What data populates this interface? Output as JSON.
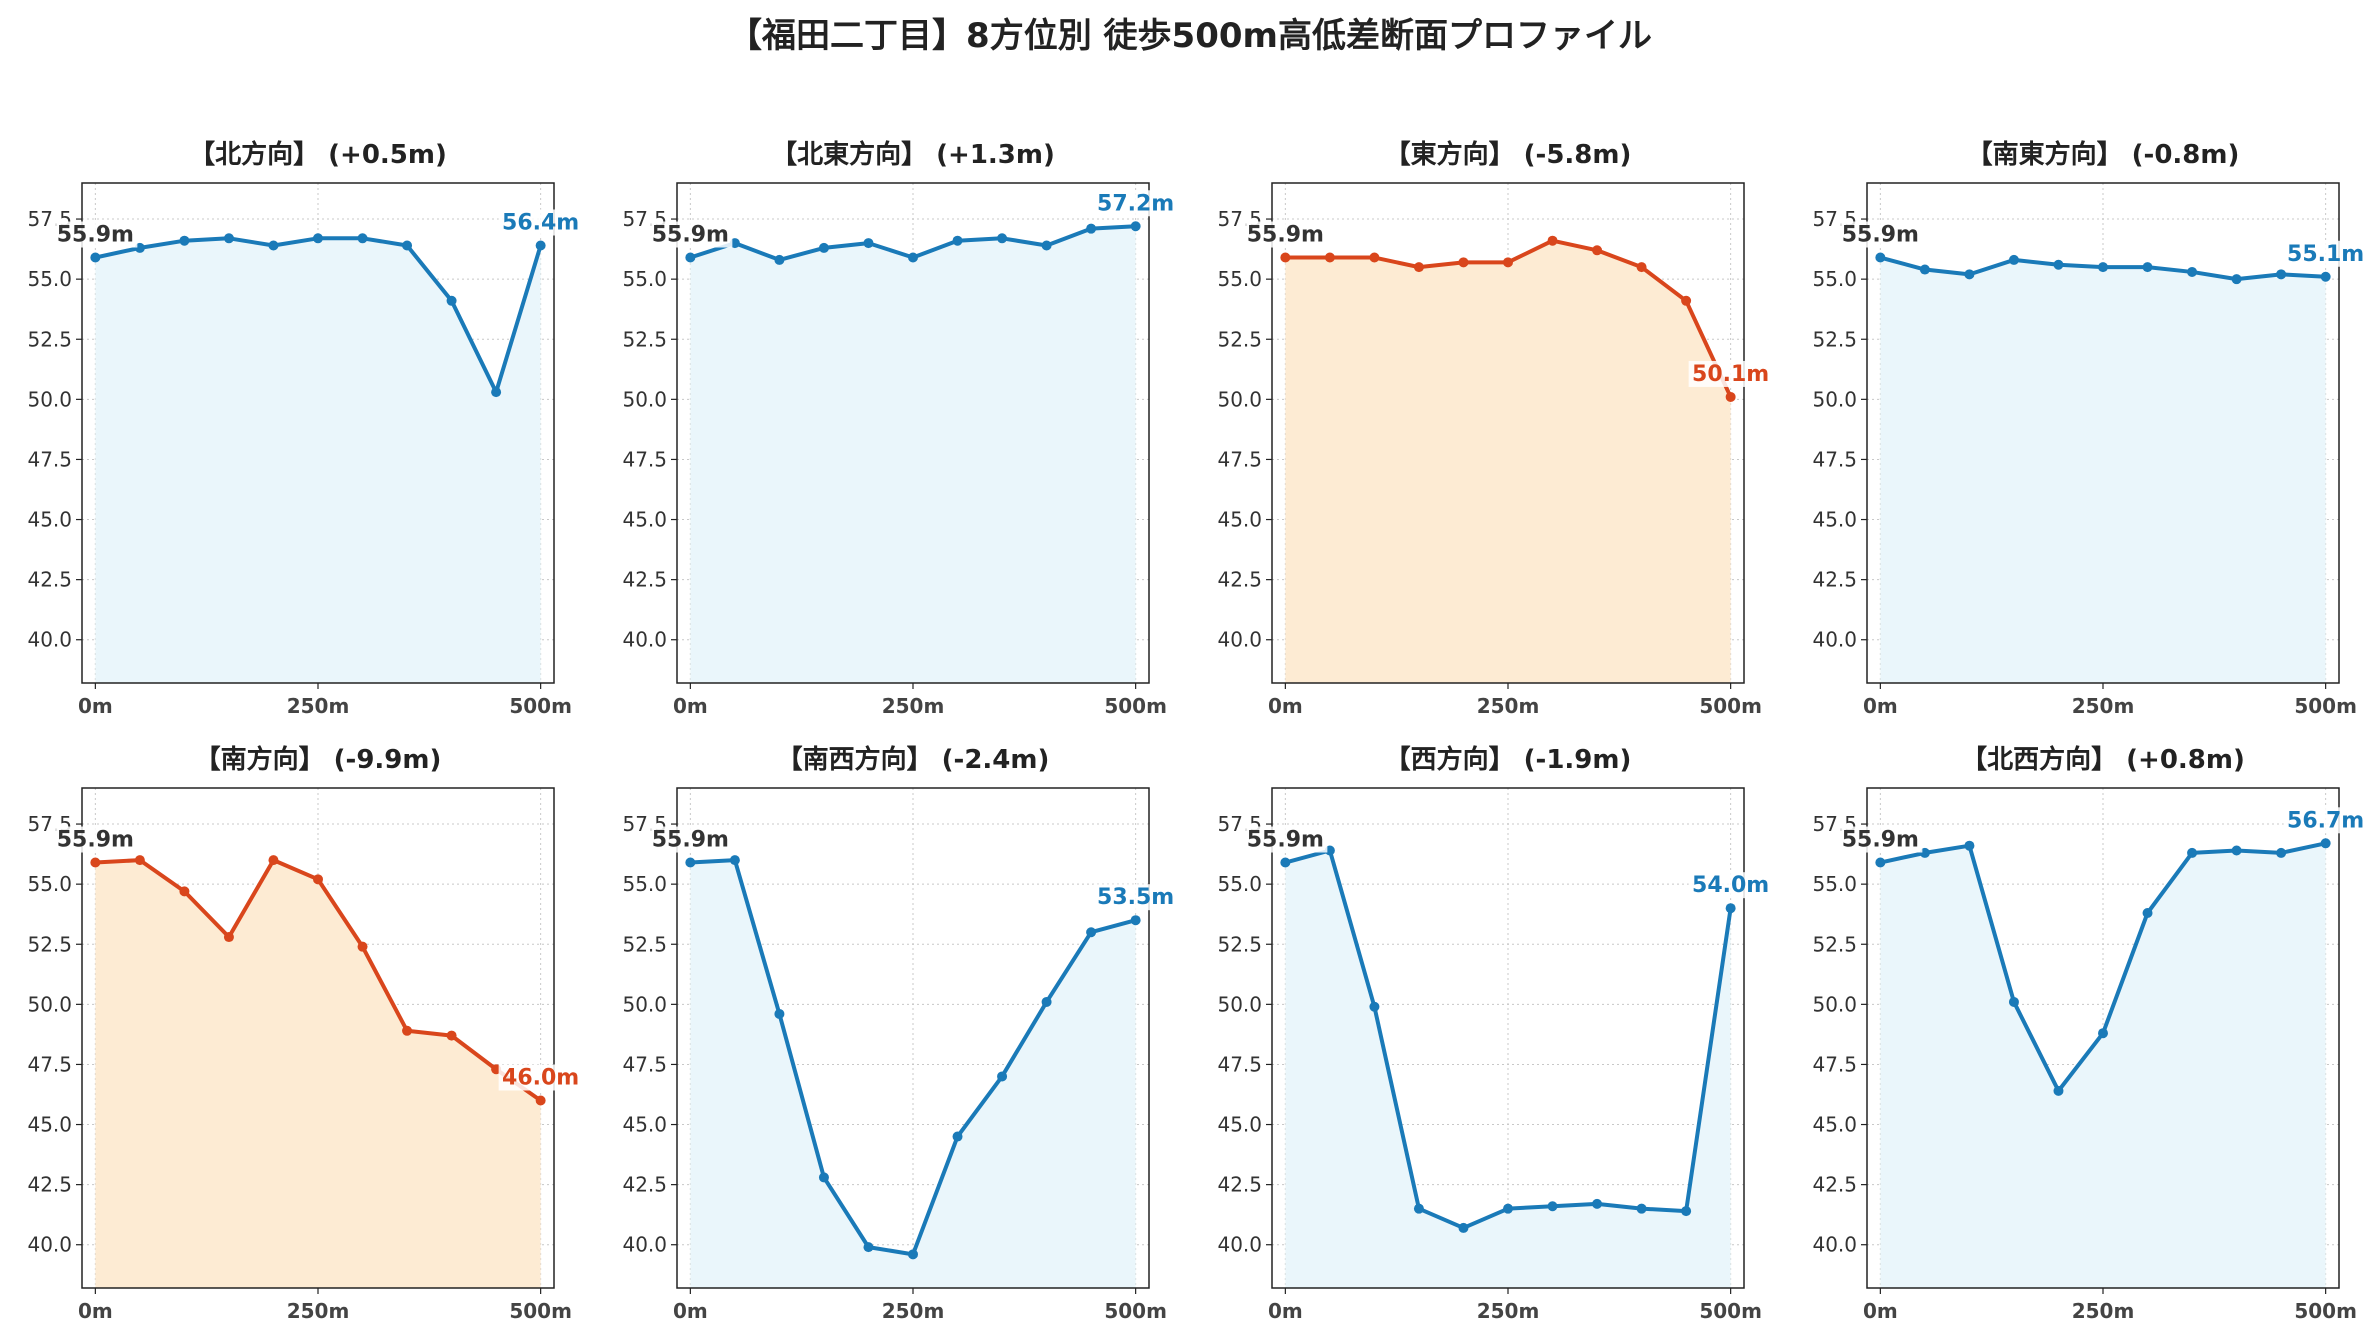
{
  "title": "【福田二丁目】8方位別 徒歩500m高低差断面プロファイル",
  "colors": {
    "up": "#1a7ab8",
    "down": "#d9461c",
    "up_fill": "#eaf6fb",
    "down_fill": "#fdebd3",
    "start_label": "#333333"
  },
  "chart_data": [
    {
      "type": "area",
      "title": "【北方向】 (+0.5m)",
      "trend": "up",
      "x": [
        0,
        50,
        100,
        150,
        200,
        250,
        300,
        350,
        400,
        450,
        500
      ],
      "y": [
        55.9,
        56.3,
        56.6,
        56.7,
        56.4,
        56.7,
        56.7,
        56.4,
        54.1,
        50.3,
        56.4
      ],
      "start_label": "55.9m",
      "end_label": "56.4m",
      "xticks": [
        0,
        250,
        500
      ],
      "xtick_labels": [
        "0m",
        "250m",
        "500m"
      ],
      "yticks": [
        40.0,
        42.5,
        45.0,
        47.5,
        50.0,
        52.5,
        55.0,
        57.5
      ],
      "ytick_labels": [
        "40.0",
        "42.5",
        "45.0",
        "47.5",
        "50.0",
        "52.5",
        "55.0",
        "57.5"
      ],
      "xlim": [
        -15,
        515
      ],
      "ylim": [
        38.2,
        59.0
      ],
      "grid": true
    },
    {
      "type": "area",
      "title": "【北東方向】 (+1.3m)",
      "trend": "up",
      "x": [
        0,
        50,
        100,
        150,
        200,
        250,
        300,
        350,
        400,
        450,
        500
      ],
      "y": [
        55.9,
        56.5,
        55.8,
        56.3,
        56.5,
        55.9,
        56.6,
        56.7,
        56.4,
        57.1,
        57.2
      ],
      "start_label": "55.9m",
      "end_label": "57.2m",
      "xticks": [
        0,
        250,
        500
      ],
      "xtick_labels": [
        "0m",
        "250m",
        "500m"
      ],
      "yticks": [
        40.0,
        42.5,
        45.0,
        47.5,
        50.0,
        52.5,
        55.0,
        57.5
      ],
      "ytick_labels": [
        "40.0",
        "42.5",
        "45.0",
        "47.5",
        "50.0",
        "52.5",
        "55.0",
        "57.5"
      ],
      "xlim": [
        -15,
        515
      ],
      "ylim": [
        38.2,
        59.0
      ],
      "grid": true
    },
    {
      "type": "area",
      "title": "【東方向】 (-5.8m)",
      "trend": "down",
      "x": [
        0,
        50,
        100,
        150,
        200,
        250,
        300,
        350,
        400,
        450,
        500
      ],
      "y": [
        55.9,
        55.9,
        55.9,
        55.5,
        55.7,
        55.7,
        56.6,
        56.2,
        55.5,
        54.1,
        50.1
      ],
      "start_label": "55.9m",
      "end_label": "50.1m",
      "xticks": [
        0,
        250,
        500
      ],
      "xtick_labels": [
        "0m",
        "250m",
        "500m"
      ],
      "yticks": [
        40.0,
        42.5,
        45.0,
        47.5,
        50.0,
        52.5,
        55.0,
        57.5
      ],
      "ytick_labels": [
        "40.0",
        "42.5",
        "45.0",
        "47.5",
        "50.0",
        "52.5",
        "55.0",
        "57.5"
      ],
      "xlim": [
        -15,
        515
      ],
      "ylim": [
        38.2,
        59.0
      ],
      "grid": true
    },
    {
      "type": "area",
      "title": "【南東方向】 (-0.8m)",
      "trend": "up",
      "x": [
        0,
        50,
        100,
        150,
        200,
        250,
        300,
        350,
        400,
        450,
        500
      ],
      "y": [
        55.9,
        55.4,
        55.2,
        55.8,
        55.6,
        55.5,
        55.5,
        55.3,
        55.0,
        55.2,
        55.1
      ],
      "start_label": "55.9m",
      "end_label": "55.1m",
      "xticks": [
        0,
        250,
        500
      ],
      "xtick_labels": [
        "0m",
        "250m",
        "500m"
      ],
      "yticks": [
        40.0,
        42.5,
        45.0,
        47.5,
        50.0,
        52.5,
        55.0,
        57.5
      ],
      "ytick_labels": [
        "40.0",
        "42.5",
        "45.0",
        "47.5",
        "50.0",
        "52.5",
        "55.0",
        "57.5"
      ],
      "xlim": [
        -15,
        515
      ],
      "ylim": [
        38.2,
        59.0
      ],
      "grid": true
    },
    {
      "type": "area",
      "title": "【南方向】 (-9.9m)",
      "trend": "down",
      "x": [
        0,
        50,
        100,
        150,
        200,
        250,
        300,
        350,
        400,
        450,
        500
      ],
      "y": [
        55.9,
        56.0,
        54.7,
        52.8,
        56.0,
        55.2,
        52.4,
        48.9,
        48.7,
        47.3,
        46.0
      ],
      "start_label": "55.9m",
      "end_label": "46.0m",
      "xticks": [
        0,
        250,
        500
      ],
      "xtick_labels": [
        "0m",
        "250m",
        "500m"
      ],
      "yticks": [
        40.0,
        42.5,
        45.0,
        47.5,
        50.0,
        52.5,
        55.0,
        57.5
      ],
      "ytick_labels": [
        "40.0",
        "42.5",
        "45.0",
        "47.5",
        "50.0",
        "52.5",
        "55.0",
        "57.5"
      ],
      "xlim": [
        -15,
        515
      ],
      "ylim": [
        38.2,
        59.0
      ],
      "grid": true
    },
    {
      "type": "area",
      "title": "【南西方向】 (-2.4m)",
      "trend": "up",
      "x": [
        0,
        50,
        100,
        150,
        200,
        250,
        300,
        350,
        400,
        450,
        500
      ],
      "y": [
        55.9,
        56.0,
        49.6,
        42.8,
        39.9,
        39.6,
        44.5,
        47.0,
        50.1,
        53.0,
        53.5
      ],
      "start_label": "55.9m",
      "end_label": "53.5m",
      "xticks": [
        0,
        250,
        500
      ],
      "xtick_labels": [
        "0m",
        "250m",
        "500m"
      ],
      "yticks": [
        40.0,
        42.5,
        45.0,
        47.5,
        50.0,
        52.5,
        55.0,
        57.5
      ],
      "ytick_labels": [
        "40.0",
        "42.5",
        "45.0",
        "47.5",
        "50.0",
        "52.5",
        "55.0",
        "57.5"
      ],
      "xlim": [
        -15,
        515
      ],
      "ylim": [
        38.2,
        59.0
      ],
      "grid": true
    },
    {
      "type": "area",
      "title": "【西方向】 (-1.9m)",
      "trend": "up",
      "x": [
        0,
        50,
        100,
        150,
        200,
        250,
        300,
        350,
        400,
        450,
        500
      ],
      "y": [
        55.9,
        56.4,
        49.9,
        41.5,
        40.7,
        41.5,
        41.6,
        41.7,
        41.5,
        41.4,
        54.0
      ],
      "start_label": "55.9m",
      "end_label": "54.0m",
      "xticks": [
        0,
        250,
        500
      ],
      "xtick_labels": [
        "0m",
        "250m",
        "500m"
      ],
      "yticks": [
        40.0,
        42.5,
        45.0,
        47.5,
        50.0,
        52.5,
        55.0,
        57.5
      ],
      "ytick_labels": [
        "40.0",
        "42.5",
        "45.0",
        "47.5",
        "50.0",
        "52.5",
        "55.0",
        "57.5"
      ],
      "xlim": [
        -15,
        515
      ],
      "ylim": [
        38.2,
        59.0
      ],
      "grid": true
    },
    {
      "type": "area",
      "title": "【北西方向】 (+0.8m)",
      "trend": "up",
      "x": [
        0,
        50,
        100,
        150,
        200,
        250,
        300,
        350,
        400,
        450,
        500
      ],
      "y": [
        55.9,
        56.3,
        56.6,
        50.1,
        46.4,
        48.8,
        53.8,
        56.3,
        56.4,
        56.3,
        56.7
      ],
      "start_label": "55.9m",
      "end_label": "56.7m",
      "xticks": [
        0,
        250,
        500
      ],
      "xtick_labels": [
        "0m",
        "250m",
        "500m"
      ],
      "yticks": [
        40.0,
        42.5,
        45.0,
        47.5,
        50.0,
        52.5,
        55.0,
        57.5
      ],
      "ytick_labels": [
        "40.0",
        "42.5",
        "45.0",
        "47.5",
        "50.0",
        "52.5",
        "55.0",
        "57.5"
      ],
      "xlim": [
        -15,
        515
      ],
      "ylim": [
        38.2,
        59.0
      ],
      "grid": true
    }
  ]
}
